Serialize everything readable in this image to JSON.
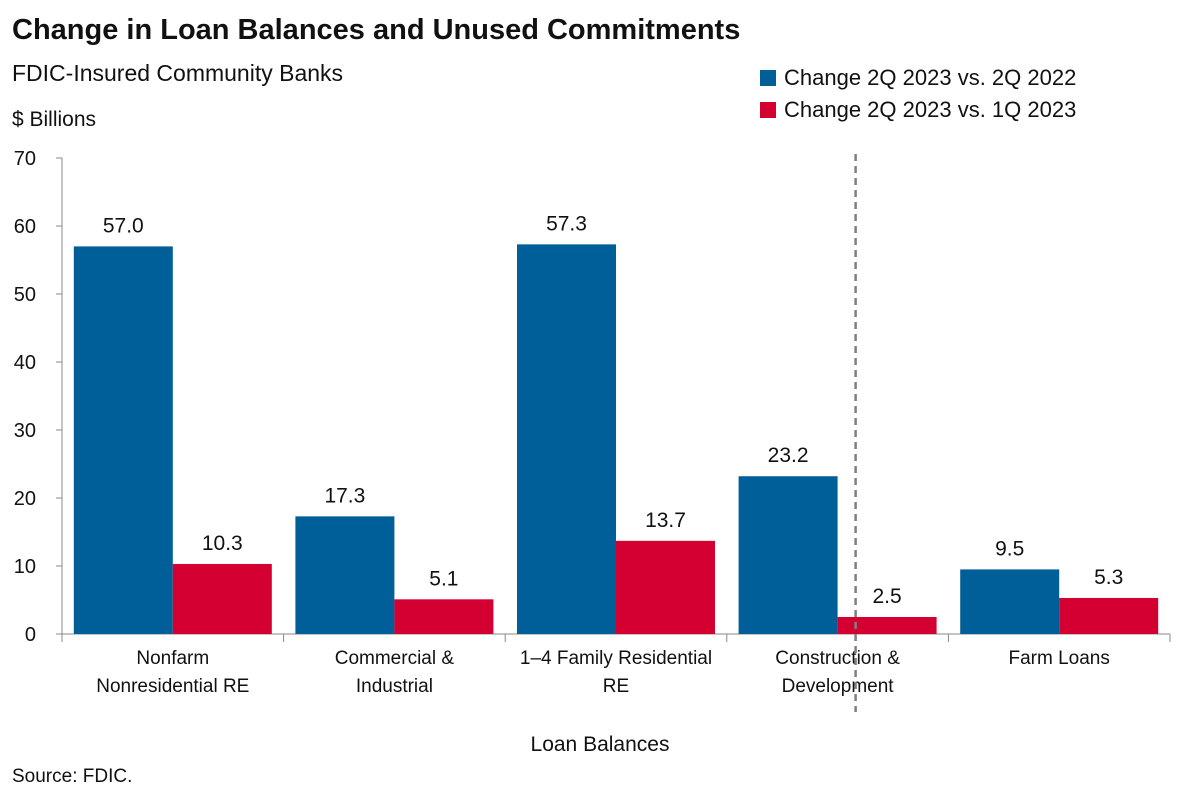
{
  "colors": {
    "series1": "#005f99",
    "series2": "#d50032",
    "axis": "#888888",
    "divider": "#808080"
  },
  "chart_data": {
    "type": "bar",
    "title": "Change in Loan Balances and Unused Commitments",
    "subtitle": "FDIC-Insured Community Banks",
    "ylabel": "$ Billions",
    "xlabel": "Loan Balances",
    "ylim": [
      0,
      70
    ],
    "yticks": [
      0,
      10,
      20,
      30,
      40,
      50,
      60,
      70
    ],
    "categories": [
      [
        "Nonfarm",
        "Nonresidential RE"
      ],
      [
        "Commercial &",
        "Industrial"
      ],
      [
        "1–4 Family Residential",
        "RE"
      ],
      [
        "Construction &",
        "Development"
      ],
      [
        "Farm Loans"
      ]
    ],
    "series": [
      {
        "name": "Change 2Q 2023 vs. 2Q 2022",
        "values": [
          57.0,
          17.3,
          57.3,
          23.2,
          9.5
        ],
        "labels": [
          "57.0",
          "17.3",
          "57.3",
          "23.2",
          "9.5"
        ]
      },
      {
        "name": "Change 2Q 2023 vs. 1Q 2023",
        "values": [
          10.3,
          5.1,
          13.7,
          2.5,
          5.3
        ],
        "labels": [
          "10.3",
          "5.1",
          "13.7",
          "2.5",
          "5.3"
        ]
      }
    ],
    "legend_position": "top-right",
    "grid": false,
    "source": "Source: FDIC."
  }
}
